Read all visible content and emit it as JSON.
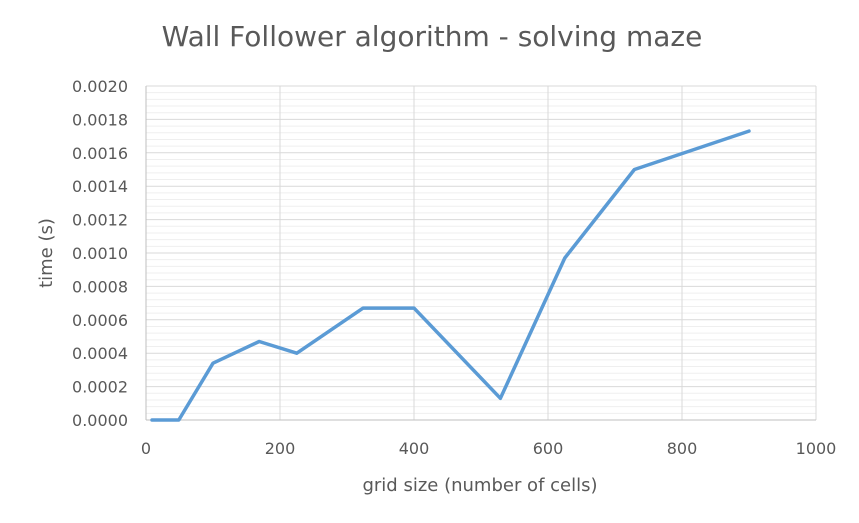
{
  "chart_data": {
    "type": "line",
    "title": "Wall Follower algorithm - solving maze",
    "xlabel": "grid size (number of cells)",
    "ylabel": "time (s)",
    "xlim": [
      0,
      1000
    ],
    "ylim": [
      0,
      0.002
    ],
    "x_ticks": [
      0,
      200,
      400,
      600,
      800,
      1000
    ],
    "y_ticks": [
      0,
      0.0002,
      0.0004,
      0.0006,
      0.0008,
      0.001,
      0.0012,
      0.0014,
      0.0016,
      0.0018,
      0.002
    ],
    "x_tick_labels": [
      "0",
      "200",
      "400",
      "600",
      "800",
      "1000"
    ],
    "y_tick_labels": [
      "0.0000",
      "0.0002",
      "0.0004",
      "0.0006",
      "0.0008",
      "0.0010",
      "0.0012",
      "0.0014",
      "0.0016",
      "0.0018",
      "0.0020"
    ],
    "grid": "on",
    "legend": "none",
    "series": [
      {
        "color": "#5b9bd5",
        "x": [
          9,
          49,
          100,
          169,
          225,
          324,
          400,
          529,
          625,
          729,
          900
        ],
        "y": [
          0.0,
          0.0,
          0.00034,
          0.00047,
          0.0004,
          0.00067,
          0.00067,
          0.00013,
          0.00097,
          0.0015,
          0.00173
        ]
      }
    ]
  }
}
